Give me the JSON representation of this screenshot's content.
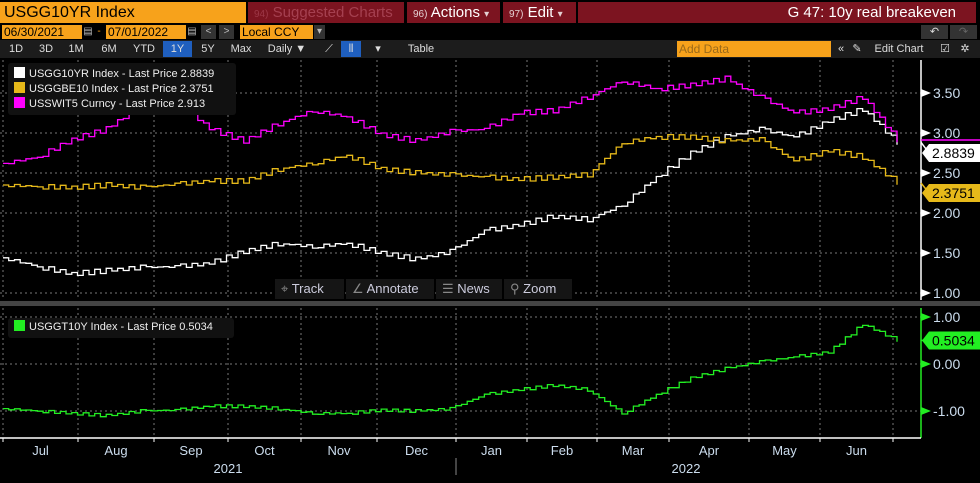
{
  "header": {
    "ticker": "USGG10YR Index",
    "suggested": "Suggested Charts",
    "suggested_num": "94)",
    "actions": "Actions",
    "actions_num": "96)",
    "edit": "Edit",
    "edit_num": "97)",
    "title": "G 47: 10y real breakeven"
  },
  "range": {
    "start": "06/30/2021",
    "end": "07/01/2022",
    "currency": "Local CCY"
  },
  "toolbar": {
    "periods": [
      "1D",
      "3D",
      "1M",
      "6M",
      "YTD",
      "1Y",
      "5Y",
      "Max"
    ],
    "selected": "1Y",
    "frequency": "Daily ▼",
    "table": "Table",
    "add_data_placeholder": "Add Data",
    "edit_chart": "Edit Chart"
  },
  "tools": {
    "track": "Track",
    "annotate": "Annotate",
    "news": "News",
    "zoom": "Zoom"
  },
  "colors": {
    "white": "#ffffff",
    "yellow": "#e6b91a",
    "magenta": "#ff00ff",
    "green": "#22ee22",
    "orange": "#f7a21b",
    "maroon": "#7c1420"
  },
  "legend_upper": [
    {
      "label": "USGG10YR Index - Last Price",
      "value": "2.8839"
    },
    {
      "label": "USGGBE10 Index - Last Price",
      "value": "2.3751"
    },
    {
      "label": "USSWIT5 Curncy - Last Price",
      "value": "2.913"
    }
  ],
  "legend_lower": [
    {
      "label": "USGGT10Y Index - Last Price",
      "value": "0.5034"
    }
  ],
  "chart_data": [
    {
      "type": "line",
      "title": "Upper panel",
      "ylim": [
        0.9,
        3.8
      ],
      "yticks": [
        "3.50",
        "3.00",
        "2.50",
        "2.00",
        "1.50",
        "1.00"
      ],
      "ytick_values": [
        3.5,
        3.0,
        2.5,
        2.0,
        1.5,
        1.0
      ],
      "series": [
        {
          "name": "USGG10YR Index",
          "color": "#ffffff",
          "last": "2.8839",
          "values": [
            1.44,
            1.33,
            1.24,
            1.28,
            1.32,
            1.33,
            1.37,
            1.52,
            1.62,
            1.58,
            1.62,
            1.5,
            1.42,
            1.52,
            1.78,
            1.85,
            1.96,
            1.92,
            2.1,
            2.45,
            2.75,
            2.95,
            3.05,
            2.95,
            3.15,
            3.3,
            2.88
          ]
        },
        {
          "name": "USGGBE10 Index",
          "color": "#e6b91a",
          "last": "2.3751",
          "values": [
            2.35,
            2.33,
            2.32,
            2.35,
            2.32,
            2.36,
            2.4,
            2.4,
            2.55,
            2.62,
            2.72,
            2.55,
            2.5,
            2.48,
            2.45,
            2.42,
            2.45,
            2.48,
            2.88,
            2.95,
            2.95,
            2.9,
            2.92,
            2.65,
            2.78,
            2.7,
            2.38
          ]
        },
        {
          "name": "USSWIT5 Curncy",
          "color": "#ff00ff",
          "last": "2.913",
          "values": [
            2.62,
            2.7,
            2.92,
            3.05,
            3.35,
            3.42,
            3.05,
            2.9,
            3.12,
            3.28,
            3.2,
            2.98,
            2.9,
            3.02,
            3.05,
            3.25,
            3.28,
            3.45,
            3.65,
            3.55,
            3.6,
            3.68,
            3.45,
            3.25,
            3.3,
            3.45,
            2.91
          ]
        }
      ]
    },
    {
      "type": "line",
      "title": "Lower panel",
      "ylim": [
        -1.35,
        1.25
      ],
      "yticks": [
        "1.00",
        "0.00",
        "-1.00"
      ],
      "ytick_values": [
        1,
        0,
        -1
      ],
      "series": [
        {
          "name": "USGGT10Y Index",
          "color": "#22ee22",
          "last": "0.5034",
          "values": [
            -0.95,
            -1.0,
            -1.05,
            -1.1,
            -1.0,
            -0.98,
            -0.9,
            -0.9,
            -0.95,
            -1.05,
            -1.05,
            -0.98,
            -1.0,
            -0.95,
            -0.65,
            -0.55,
            -0.45,
            -0.55,
            -1.05,
            -0.65,
            -0.3,
            -0.1,
            0.05,
            0.15,
            0.25,
            0.85,
            0.5
          ]
        }
      ]
    }
  ],
  "xaxis": {
    "months": [
      "Jul",
      "Aug",
      "Sep",
      "Oct",
      "Nov",
      "Dec",
      "Jan",
      "Feb",
      "Mar",
      "Apr",
      "May",
      "Jun"
    ],
    "years": [
      "2021",
      "2022"
    ]
  }
}
